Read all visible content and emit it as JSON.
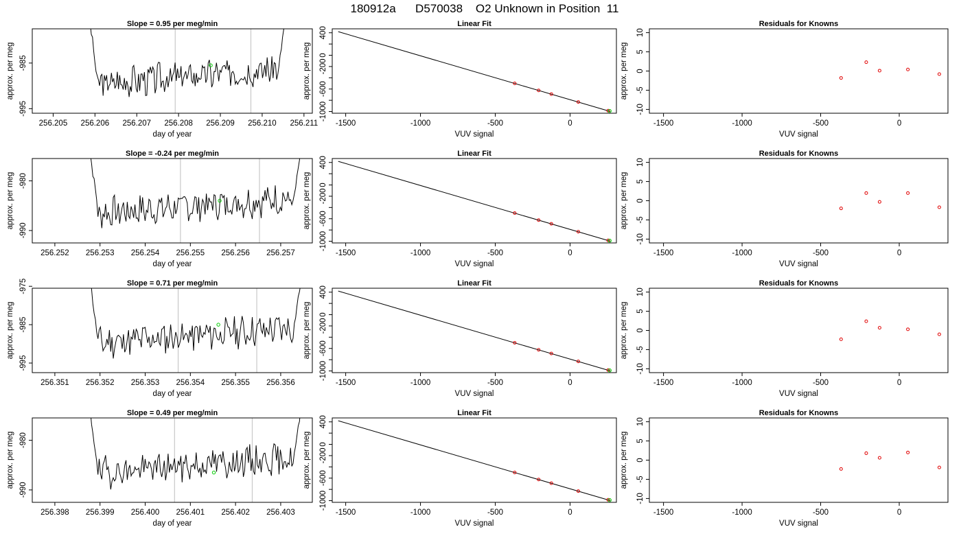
{
  "page_title": "180912a      D570038    O2 Unknown in Position  11",
  "colors": {
    "trace": "#000000",
    "marker_window": "#c8c8c8",
    "unknown": "#00cc00",
    "known": "#e00000",
    "fit_line": "#000000"
  },
  "chart_data": [
    {
      "row": 1,
      "time_panel": {
        "type": "line",
        "title": "Slope =  0.95  per meg/min",
        "xlabel": "day of year",
        "ylabel": "approx. per meg",
        "xlim": [
          256.2045,
          256.2112
        ],
        "ylim": [
          -996.0,
          -977.5
        ],
        "x_ticks": [
          "256.205",
          "256.206",
          "256.207",
          "256.208",
          "256.209",
          "256.210",
          "256.211"
        ],
        "y_ticks": [
          "-995",
          "-985"
        ],
        "x_start": 256.2058,
        "x_end": 256.2106,
        "vlines": [
          256.20792,
          256.20973
        ],
        "unknown_point": {
          "x": 256.20877,
          "y": -985.5
        },
        "wave_seed": 3
      },
      "fit_panel": {
        "type": "line",
        "title": "Linear Fit",
        "xlabel": "VUV signal",
        "ylabel": "approx. per meg",
        "xlim": [
          -1590,
          310
        ],
        "ylim": [
          -1030,
          470
        ],
        "x_ticks": [
          "-1500",
          "-1000",
          "-500",
          "0"
        ],
        "y_ticks": [
          "-1000",
          "-600",
          "-200",
          "0",
          "400"
        ],
        "y_minor": [
          -800,
          -400,
          200
        ],
        "line": [
          [
            -1550,
            420
          ],
          [
            270,
            -1000
          ]
        ],
        "knowns": [
          {
            "x": -370,
            "y": -500
          },
          {
            "x": -210,
            "y": -625
          },
          {
            "x": -125,
            "y": -690
          },
          {
            "x": 55,
            "y": -830
          },
          {
            "x": 255,
            "y": -985
          }
        ],
        "unknown": {
          "x": 265,
          "y": -990
        }
      },
      "resid_panel": {
        "type": "scatter",
        "title": "Residuals for Knowns",
        "xlabel": "VUV signal",
        "ylabel": "approx. per meg",
        "xlim": [
          -1590,
          310
        ],
        "ylim": [
          -11,
          11
        ],
        "x_ticks": [
          "-1500",
          "-1000",
          "-500",
          "0"
        ],
        "y_ticks": [
          "-10",
          "-5",
          "0",
          "5",
          "10"
        ],
        "points": [
          {
            "x": -370,
            "y": -1.8
          },
          {
            "x": -210,
            "y": 2.3
          },
          {
            "x": -125,
            "y": 0.1
          },
          {
            "x": 55,
            "y": 0.4
          },
          {
            "x": 255,
            "y": -0.8
          }
        ]
      }
    },
    {
      "row": 2,
      "time_panel": {
        "type": "line",
        "title": "Slope =  -0.24  per meg/min",
        "xlabel": "day of year",
        "ylabel": "approx. per meg",
        "xlim": [
          256.2515,
          256.2577
        ],
        "ylim": [
          -992.5,
          -975.5
        ],
        "x_ticks": [
          "256.252",
          "256.253",
          "256.254",
          "256.255",
          "256.256",
          "256.257"
        ],
        "y_ticks": [
          "-990",
          "-980"
        ],
        "x_start": 256.2527,
        "x_end": 256.2575,
        "vlines": [
          256.25478,
          256.25653
        ],
        "unknown_point": {
          "x": 256.25565,
          "y": -984.0
        },
        "wave_seed": 7
      },
      "fit_panel": {
        "type": "line",
        "title": "Linear Fit",
        "xlabel": "VUV signal",
        "ylabel": "approx. per meg",
        "xlim": [
          -1590,
          310
        ],
        "ylim": [
          -1030,
          470
        ],
        "x_ticks": [
          "-1500",
          "-1000",
          "-500",
          "0"
        ],
        "y_ticks": [
          "-1000",
          "-600",
          "-200",
          "0",
          "400"
        ],
        "y_minor": [
          -800,
          -400,
          200
        ],
        "line": [
          [
            -1550,
            420
          ],
          [
            270,
            -1000
          ]
        ],
        "knowns": [
          {
            "x": -370,
            "y": -500
          },
          {
            "x": -210,
            "y": -625
          },
          {
            "x": -125,
            "y": -690
          },
          {
            "x": 55,
            "y": -830
          },
          {
            "x": 255,
            "y": -985
          }
        ],
        "unknown": {
          "x": 265,
          "y": -990
        }
      },
      "resid_panel": {
        "type": "scatter",
        "title": "Residuals for Knowns",
        "xlabel": "VUV signal",
        "ylabel": "approx. per meg",
        "xlim": [
          -1590,
          310
        ],
        "ylim": [
          -11,
          11
        ],
        "x_ticks": [
          "-1500",
          "-1000",
          "-500",
          "0"
        ],
        "y_ticks": [
          "-10",
          "-5",
          "0",
          "5",
          "10"
        ],
        "points": [
          {
            "x": -370,
            "y": -2.0
          },
          {
            "x": -210,
            "y": 2.0
          },
          {
            "x": -125,
            "y": -0.3
          },
          {
            "x": 55,
            "y": 2.0
          },
          {
            "x": 255,
            "y": -1.7
          }
        ]
      }
    },
    {
      "row": 3,
      "time_panel": {
        "type": "line",
        "title": "Slope =  0.71  per meg/min",
        "xlabel": "day of year",
        "ylabel": "approx. per meg",
        "xlim": [
          256.3505,
          256.3567
        ],
        "ylim": [
          -997.5,
          -975.5
        ],
        "x_ticks": [
          "256.351",
          "256.352",
          "256.353",
          "256.354",
          "256.355",
          "256.356"
        ],
        "y_ticks": [
          "-995",
          "-985",
          "-975"
        ],
        "x_start": 256.3517,
        "x_end": 256.3565,
        "vlines": [
          256.35373,
          256.35547
        ],
        "unknown_point": {
          "x": 256.35462,
          "y": -985.0
        },
        "wave_seed": 11
      },
      "fit_panel": {
        "type": "line",
        "title": "Linear Fit",
        "xlabel": "VUV signal",
        "ylabel": "approx. per meg",
        "xlim": [
          -1590,
          310
        ],
        "ylim": [
          -1030,
          470
        ],
        "x_ticks": [
          "-1500",
          "-1000",
          "-500",
          "0"
        ],
        "y_ticks": [
          "-1000",
          "-600",
          "-200",
          "0",
          "400"
        ],
        "y_minor": [
          -800,
          -400,
          200
        ],
        "line": [
          [
            -1550,
            420
          ],
          [
            270,
            -1000
          ]
        ],
        "knowns": [
          {
            "x": -370,
            "y": -500
          },
          {
            "x": -210,
            "y": -625
          },
          {
            "x": -125,
            "y": -690
          },
          {
            "x": 55,
            "y": -830
          },
          {
            "x": 255,
            "y": -985
          }
        ],
        "unknown": {
          "x": 265,
          "y": -990
        }
      },
      "resid_panel": {
        "type": "scatter",
        "title": "Residuals for Knowns",
        "xlabel": "VUV signal",
        "ylabel": "approx. per meg",
        "xlim": [
          -1590,
          310
        ],
        "ylim": [
          -11,
          11
        ],
        "x_ticks": [
          "-1500",
          "-1000",
          "-500",
          "0"
        ],
        "y_ticks": [
          "-10",
          "-5",
          "0",
          "5",
          "10"
        ],
        "points": [
          {
            "x": -370,
            "y": -2.3
          },
          {
            "x": -210,
            "y": 2.4
          },
          {
            "x": -125,
            "y": 0.7
          },
          {
            "x": 55,
            "y": 0.3
          },
          {
            "x": 255,
            "y": -1.0
          }
        ]
      }
    },
    {
      "row": 4,
      "time_panel": {
        "type": "line",
        "title": "Slope =  0.49  per meg/min",
        "xlabel": "day of year",
        "ylabel": "approx. per meg",
        "xlim": [
          256.3975,
          256.4037
        ],
        "ylim": [
          -992.5,
          -975.5
        ],
        "x_ticks": [
          "256.398",
          "256.399",
          "256.400",
          "256.401",
          "256.402",
          "256.403"
        ],
        "y_ticks": [
          "-990",
          "-980"
        ],
        "x_start": 256.3987,
        "x_end": 256.4035,
        "vlines": [
          256.40065,
          256.40237
        ],
        "unknown_point": {
          "x": 256.40152,
          "y": -986.5
        },
        "wave_seed": 19
      },
      "fit_panel": {
        "type": "line",
        "title": "Linear Fit",
        "xlabel": "VUV signal",
        "ylabel": "approx. per meg",
        "xlim": [
          -1590,
          310
        ],
        "ylim": [
          -1030,
          470
        ],
        "x_ticks": [
          "-1500",
          "-1000",
          "-500",
          "0"
        ],
        "y_ticks": [
          "-1000",
          "-600",
          "-200",
          "0",
          "400"
        ],
        "y_minor": [
          -800,
          -400,
          200
        ],
        "line": [
          [
            -1550,
            420
          ],
          [
            270,
            -1000
          ]
        ],
        "knowns": [
          {
            "x": -370,
            "y": -500
          },
          {
            "x": -210,
            "y": -625
          },
          {
            "x": -125,
            "y": -690
          },
          {
            "x": 55,
            "y": -830
          },
          {
            "x": 255,
            "y": -985
          }
        ],
        "unknown": {
          "x": 265,
          "y": -990
        }
      },
      "resid_panel": {
        "type": "scatter",
        "title": "Residuals for Knowns",
        "xlabel": "VUV signal",
        "ylabel": "approx. per meg",
        "xlim": [
          -1590,
          310
        ],
        "ylim": [
          -11,
          11
        ],
        "x_ticks": [
          "-1500",
          "-1000",
          "-500",
          "0"
        ],
        "y_ticks": [
          "-10",
          "-5",
          "0",
          "5",
          "10"
        ],
        "points": [
          {
            "x": -370,
            "y": -2.3
          },
          {
            "x": -210,
            "y": 1.8
          },
          {
            "x": -125,
            "y": 0.6
          },
          {
            "x": 55,
            "y": 2.0
          },
          {
            "x": 255,
            "y": -1.9
          }
        ]
      }
    }
  ]
}
